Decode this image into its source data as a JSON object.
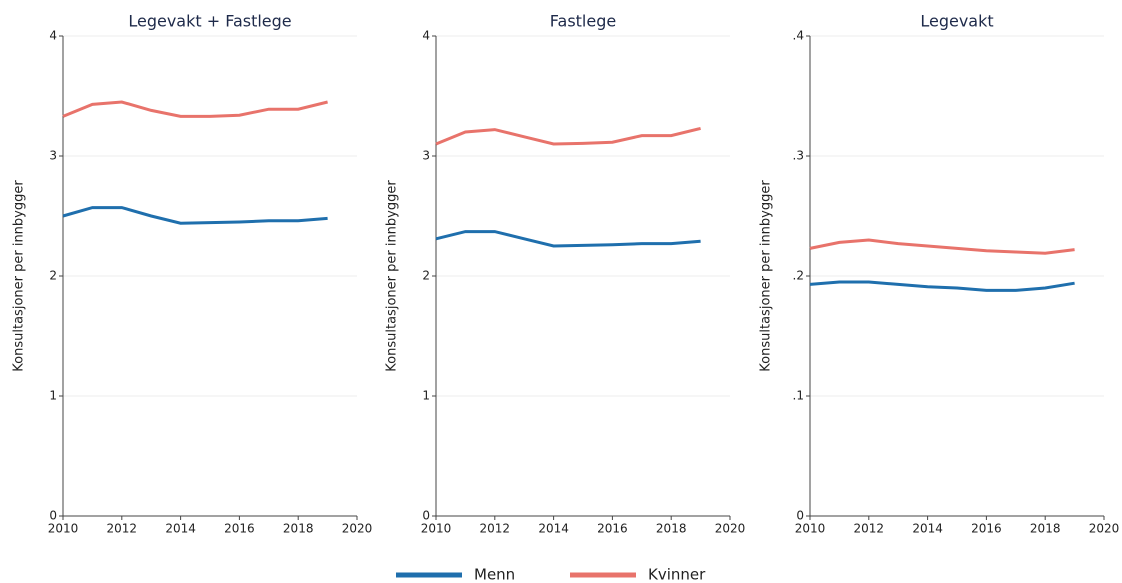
{
  "chart_data": [
    {
      "type": "line",
      "title": "Legevakt + Fastlege",
      "ylabel": "Konsultasjoner per innbygger",
      "x": [
        2010,
        2011,
        2012,
        2013,
        2014,
        2015,
        2016,
        2017,
        2018,
        2019
      ],
      "xlim": [
        2010,
        2020
      ],
      "xticks": [
        2010,
        2012,
        2014,
        2016,
        2018,
        2020
      ],
      "ylim": [
        0,
        4
      ],
      "yticks": [
        0,
        1,
        2,
        3,
        4
      ],
      "grid": true,
      "series": [
        {
          "name": "Menn",
          "color": "#1f6fad",
          "values": [
            2.5,
            2.57,
            2.57,
            2.5,
            2.44,
            2.445,
            2.45,
            2.46,
            2.46,
            2.48
          ]
        },
        {
          "name": "Kvinner",
          "color": "#e8736b",
          "values": [
            3.33,
            3.43,
            3.45,
            3.38,
            3.33,
            3.33,
            3.34,
            3.39,
            3.39,
            3.45
          ]
        }
      ]
    },
    {
      "type": "line",
      "title": "Fastlege",
      "ylabel": "Konsultasjoner per innbygger",
      "x": [
        2010,
        2011,
        2012,
        2013,
        2014,
        2015,
        2016,
        2017,
        2018,
        2019
      ],
      "xlim": [
        2010,
        2020
      ],
      "xticks": [
        2010,
        2012,
        2014,
        2016,
        2018,
        2020
      ],
      "ylim": [
        0,
        4
      ],
      "yticks": [
        0,
        1,
        2,
        3,
        4
      ],
      "grid": true,
      "series": [
        {
          "name": "Menn",
          "color": "#1f6fad",
          "values": [
            2.31,
            2.37,
            2.37,
            2.31,
            2.25,
            2.255,
            2.26,
            2.27,
            2.27,
            2.29
          ]
        },
        {
          "name": "Kvinner",
          "color": "#e8736b",
          "values": [
            3.1,
            3.2,
            3.22,
            3.16,
            3.1,
            3.105,
            3.115,
            3.17,
            3.17,
            3.23
          ]
        }
      ]
    },
    {
      "type": "line",
      "title": "Legevakt",
      "ylabel": "Konsultasjoner per innbygger",
      "x": [
        2010,
        2011,
        2012,
        2013,
        2014,
        2015,
        2016,
        2017,
        2018,
        2019
      ],
      "xlim": [
        2010,
        2020
      ],
      "xticks": [
        2010,
        2012,
        2014,
        2016,
        2018,
        2020
      ],
      "ylim": [
        0,
        0.4
      ],
      "yticks": [
        0,
        {
          "value": 0.1,
          "label": ".1"
        },
        {
          "value": 0.2,
          "label": ".2"
        },
        {
          "value": 0.3,
          "label": ".3"
        },
        {
          "value": 0.4,
          "label": ".4"
        }
      ],
      "grid": true,
      "series": [
        {
          "name": "Menn",
          "color": "#1f6fad",
          "values": [
            0.193,
            0.195,
            0.195,
            0.193,
            0.191,
            0.19,
            0.188,
            0.188,
            0.19,
            0.194
          ]
        },
        {
          "name": "Kvinner",
          "color": "#e8736b",
          "values": [
            0.223,
            0.228,
            0.23,
            0.227,
            0.225,
            0.223,
            0.221,
            0.22,
            0.219,
            0.222
          ]
        }
      ]
    }
  ]
}
